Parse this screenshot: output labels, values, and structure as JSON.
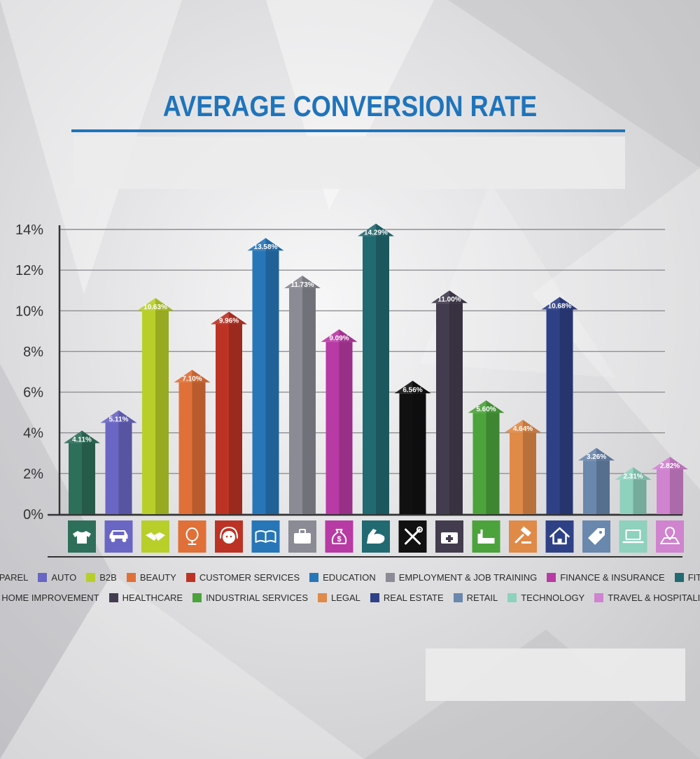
{
  "chart_data": {
    "type": "bar",
    "title": "AVERAGE CONVERSION RATE",
    "xlabel": "",
    "ylabel": "",
    "ylim": [
      0,
      14
    ],
    "y_ticks": [
      "0%",
      "2%",
      "4%",
      "6%",
      "8%",
      "10%",
      "12%",
      "14%"
    ],
    "grid": true,
    "legend_position": "bottom",
    "categories": [
      "APPAREL",
      "AUTO",
      "B2B",
      "BEAUTY",
      "CUSTOMER SERVICES",
      "EDUCATION",
      "EMPLOYMENT & JOB TRAINING",
      "FINANCE & INSURANCE",
      "FITNESS",
      "HOME IMPROVEMENT",
      "HEALTHCARE",
      "INDUSTRIAL SERVICES",
      "LEGAL",
      "REAL ESTATE",
      "RETAIL",
      "TECHNOLOGY",
      "TRAVEL & HOSPITALITY"
    ],
    "values": [
      4.11,
      5.11,
      10.63,
      7.1,
      9.96,
      13.58,
      11.73,
      9.09,
      14.29,
      6.56,
      11.0,
      5.6,
      4.64,
      10.68,
      3.26,
      2.31,
      2.82
    ],
    "value_labels": [
      "4.11%",
      "5.11%",
      "10.63%",
      "7.10%",
      "9.96%",
      "13.58%",
      "11.73%",
      "9.09%",
      "14.29%",
      "6.56%",
      "11.00%",
      "5.60%",
      "4.64%",
      "10.68%",
      "3.26%",
      "2.31%",
      "2.82%"
    ],
    "colors": [
      "#2e6f5a",
      "#6a66c4",
      "#b8cf2a",
      "#e07038",
      "#bc3325",
      "#2776b8",
      "#8a8b94",
      "#b83aa4",
      "#226a72",
      "#111111",
      "#433c4e",
      "#4ca33c",
      "#e08a48",
      "#2f4186",
      "#6a87ad",
      "#8ed1bd",
      "#d083cf"
    ],
    "icons": [
      "tshirt-icon",
      "car-icon",
      "handshake-icon",
      "mirror-icon",
      "headset-icon",
      "book-icon",
      "briefcase-icon",
      "money-bag-icon",
      "flexed-arm-icon",
      "tools-icon",
      "first-aid-kit-icon",
      "factory-icon",
      "gavel-icon",
      "house-icon",
      "price-tag-icon",
      "laptop-icon",
      "map-pin-icon"
    ]
  }
}
